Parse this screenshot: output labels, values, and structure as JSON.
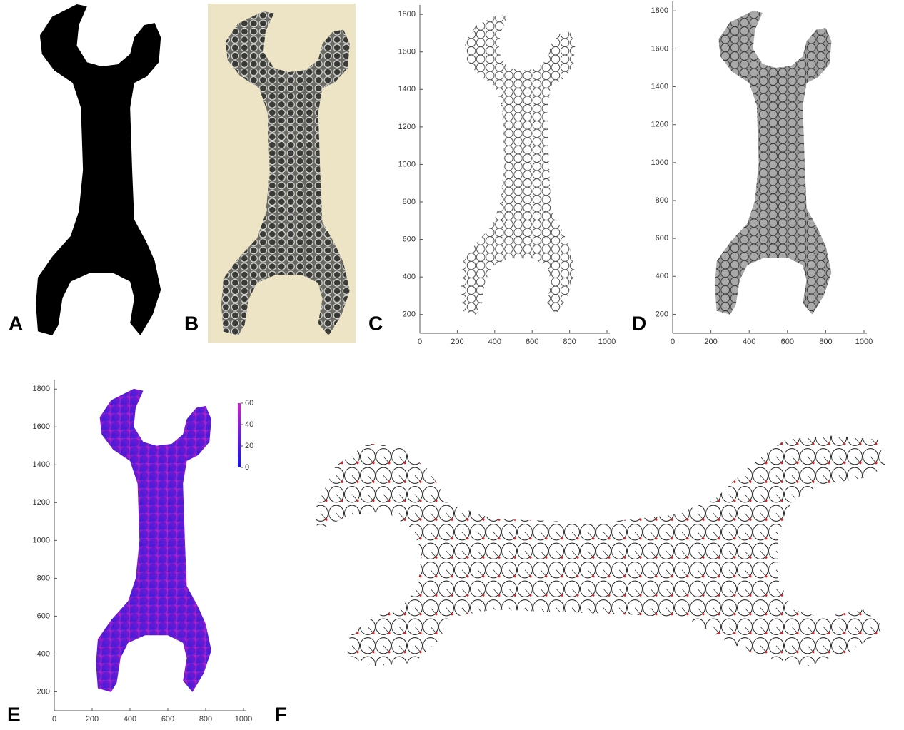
{
  "figure": {
    "panels": [
      {
        "label": "A"
      },
      {
        "label": "B"
      },
      {
        "label": "C",
        "xlim": [
          0,
          1000
        ],
        "ylim": [
          100,
          1850
        ],
        "xticks": [
          0,
          200,
          400,
          600,
          800,
          1000
        ],
        "yticks": [
          200,
          400,
          600,
          800,
          1000,
          1200,
          1400,
          1600,
          1800
        ]
      },
      {
        "label": "D",
        "xlim": [
          0,
          1000
        ],
        "ylim": [
          100,
          1850
        ],
        "xticks": [
          0,
          200,
          400,
          600,
          800,
          1000
        ],
        "yticks": [
          200,
          400,
          600,
          800,
          1000,
          1200,
          1400,
          1600,
          1800
        ]
      },
      {
        "label": "E",
        "xlim": [
          0,
          1000
        ],
        "ylim": [
          100,
          1850
        ],
        "xticks": [
          0,
          200,
          400,
          600,
          800,
          1000
        ],
        "yticks": [
          200,
          400,
          600,
          800,
          1000,
          1200,
          1400,
          1600,
          1800
        ],
        "colorbar": {
          "lim": [
            0,
            60
          ],
          "ticks": [
            0,
            20,
            40,
            60
          ]
        }
      },
      {
        "label": "F"
      }
    ]
  }
}
